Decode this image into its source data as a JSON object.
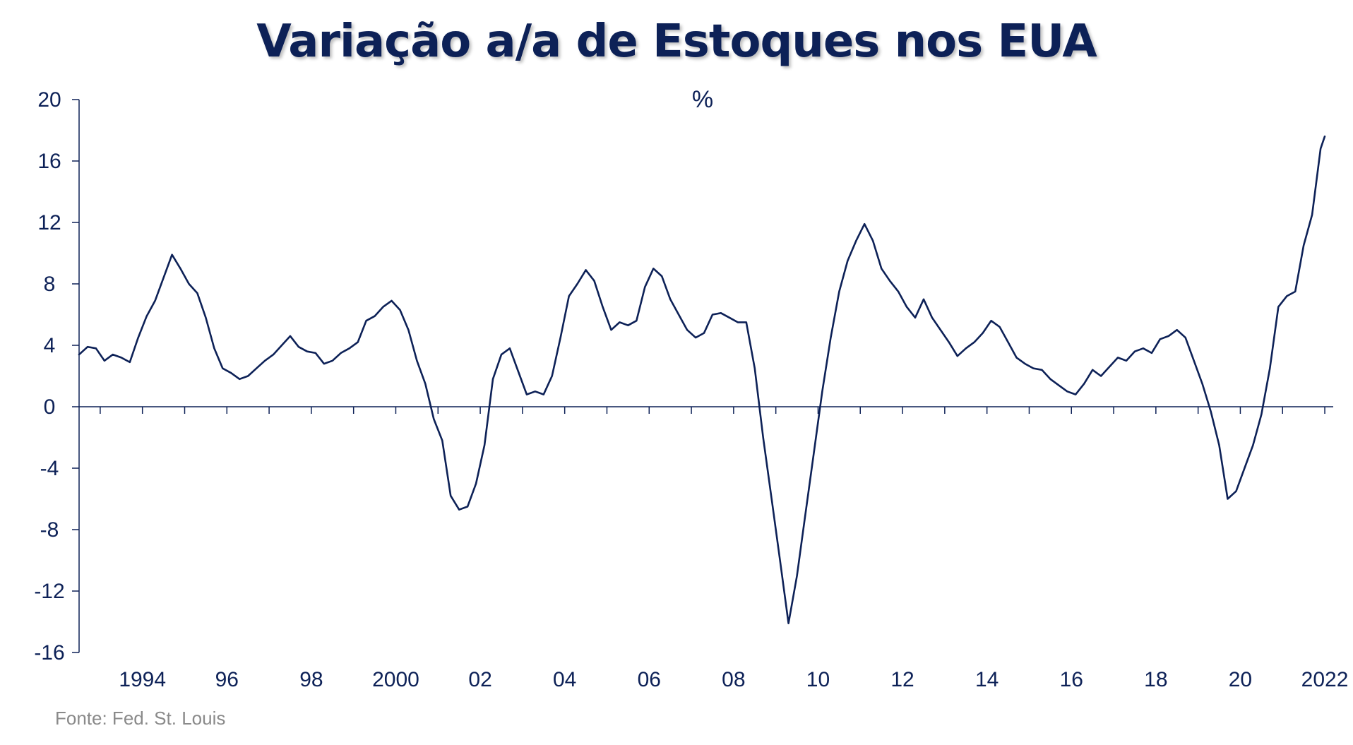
{
  "chart_data": {
    "type": "line",
    "title": "Variação a/a de Estoques nos EUA",
    "unit": "%",
    "source": "Fonte:  Fed. St. Louis",
    "xlabel": "",
    "ylabel": "",
    "ylim": [
      -16,
      20
    ],
    "yticks": [
      20,
      16,
      12,
      8,
      4,
      0,
      -4,
      -8,
      -12,
      -16
    ],
    "ytick_labels": [
      "20",
      "16",
      "12",
      "8",
      "4",
      "0",
      "-4",
      "-8",
      "-12",
      "-16"
    ],
    "xlim": [
      1993.0,
      2022.7
    ],
    "xtick_labels": [
      {
        "year": 1994,
        "label": "1994"
      },
      {
        "year": 1996,
        "label": "96"
      },
      {
        "year": 1998,
        "label": "98"
      },
      {
        "year": 2000,
        "label": "2000"
      },
      {
        "year": 2002,
        "label": "02"
      },
      {
        "year": 2004,
        "label": "04"
      },
      {
        "year": 2006,
        "label": "06"
      },
      {
        "year": 2008,
        "label": "08"
      },
      {
        "year": 2010,
        "label": "10"
      },
      {
        "year": 2012,
        "label": "12"
      },
      {
        "year": 2014,
        "label": "14"
      },
      {
        "year": 2016,
        "label": "16"
      },
      {
        "year": 2018,
        "label": "18"
      },
      {
        "year": 2020,
        "label": "20"
      },
      {
        "year": 2022,
        "label": "2022"
      }
    ],
    "grid": false,
    "line_color": "#0d2157",
    "series": [
      {
        "points": [
          [
            1993.0,
            3.4
          ],
          [
            1993.2,
            3.9
          ],
          [
            1993.4,
            3.8
          ],
          [
            1993.6,
            3.0
          ],
          [
            1993.8,
            3.4
          ],
          [
            1994.0,
            3.2
          ],
          [
            1994.2,
            2.9
          ],
          [
            1994.4,
            4.5
          ],
          [
            1994.6,
            5.9
          ],
          [
            1994.8,
            6.9
          ],
          [
            1995.0,
            8.4
          ],
          [
            1995.2,
            9.9
          ],
          [
            1995.4,
            9.0
          ],
          [
            1995.6,
            8.0
          ],
          [
            1995.8,
            7.4
          ],
          [
            1996.0,
            5.8
          ],
          [
            1996.2,
            3.8
          ],
          [
            1996.4,
            2.5
          ],
          [
            1996.6,
            2.2
          ],
          [
            1996.8,
            1.8
          ],
          [
            1997.0,
            2.0
          ],
          [
            1997.2,
            2.5
          ],
          [
            1997.4,
            3.0
          ],
          [
            1997.6,
            3.4
          ],
          [
            1997.8,
            4.0
          ],
          [
            1998.0,
            4.6
          ],
          [
            1998.2,
            3.9
          ],
          [
            1998.4,
            3.6
          ],
          [
            1998.6,
            3.5
          ],
          [
            1998.8,
            2.8
          ],
          [
            1999.0,
            3.0
          ],
          [
            1999.2,
            3.5
          ],
          [
            1999.4,
            3.8
          ],
          [
            1999.6,
            4.2
          ],
          [
            1999.8,
            5.6
          ],
          [
            2000.0,
            5.9
          ],
          [
            2000.2,
            6.5
          ],
          [
            2000.4,
            6.9
          ],
          [
            2000.6,
            6.3
          ],
          [
            2000.8,
            5.0
          ],
          [
            2001.0,
            3.0
          ],
          [
            2001.2,
            1.5
          ],
          [
            2001.4,
            -0.8
          ],
          [
            2001.6,
            -2.2
          ],
          [
            2001.8,
            -5.8
          ],
          [
            2002.0,
            -6.7
          ],
          [
            2002.2,
            -6.5
          ],
          [
            2002.4,
            -5.0
          ],
          [
            2002.6,
            -2.5
          ],
          [
            2002.8,
            1.8
          ],
          [
            2003.0,
            3.4
          ],
          [
            2003.2,
            3.8
          ],
          [
            2003.4,
            2.3
          ],
          [
            2003.6,
            0.8
          ],
          [
            2003.8,
            1.0
          ],
          [
            2004.0,
            0.8
          ],
          [
            2004.2,
            2.0
          ],
          [
            2004.4,
            4.5
          ],
          [
            2004.6,
            7.2
          ],
          [
            2004.8,
            8.0
          ],
          [
            2005.0,
            8.9
          ],
          [
            2005.2,
            8.2
          ],
          [
            2005.4,
            6.5
          ],
          [
            2005.6,
            5.0
          ],
          [
            2005.8,
            5.5
          ],
          [
            2006.0,
            5.3
          ],
          [
            2006.2,
            5.6
          ],
          [
            2006.4,
            7.8
          ],
          [
            2006.6,
            9.0
          ],
          [
            2006.8,
            8.5
          ],
          [
            2007.0,
            7.0
          ],
          [
            2007.2,
            6.0
          ],
          [
            2007.4,
            5.0
          ],
          [
            2007.6,
            4.5
          ],
          [
            2007.8,
            4.8
          ],
          [
            2008.0,
            6.0
          ],
          [
            2008.2,
            6.1
          ],
          [
            2008.4,
            5.8
          ],
          [
            2008.6,
            5.5
          ],
          [
            2008.8,
            5.5
          ],
          [
            2009.0,
            2.5
          ],
          [
            2009.2,
            -2.0
          ],
          [
            2009.4,
            -6.0
          ],
          [
            2009.6,
            -10.0
          ],
          [
            2009.8,
            -14.1
          ],
          [
            2010.0,
            -11.0
          ],
          [
            2010.2,
            -7.0
          ],
          [
            2010.4,
            -3.0
          ],
          [
            2010.6,
            1.0
          ],
          [
            2010.8,
            4.5
          ],
          [
            2011.0,
            7.5
          ],
          [
            2011.2,
            9.5
          ],
          [
            2011.4,
            10.8
          ],
          [
            2011.6,
            11.9
          ],
          [
            2011.8,
            10.8
          ],
          [
            2012.0,
            9.0
          ],
          [
            2012.2,
            8.2
          ],
          [
            2012.4,
            7.5
          ],
          [
            2012.6,
            6.5
          ],
          [
            2012.8,
            5.8
          ],
          [
            2013.0,
            7.0
          ],
          [
            2013.2,
            5.8
          ],
          [
            2013.4,
            5.0
          ],
          [
            2013.6,
            4.2
          ],
          [
            2013.8,
            3.3
          ],
          [
            2014.0,
            3.8
          ],
          [
            2014.2,
            4.2
          ],
          [
            2014.4,
            4.8
          ],
          [
            2014.6,
            5.6
          ],
          [
            2014.8,
            5.2
          ],
          [
            2015.0,
            4.2
          ],
          [
            2015.2,
            3.2
          ],
          [
            2015.4,
            2.8
          ],
          [
            2015.6,
            2.5
          ],
          [
            2015.8,
            2.4
          ],
          [
            2016.0,
            1.8
          ],
          [
            2016.2,
            1.4
          ],
          [
            2016.4,
            1.0
          ],
          [
            2016.6,
            0.8
          ],
          [
            2016.8,
            1.5
          ],
          [
            2017.0,
            2.4
          ],
          [
            2017.2,
            2.0
          ],
          [
            2017.4,
            2.6
          ],
          [
            2017.6,
            3.2
          ],
          [
            2017.8,
            3.0
          ],
          [
            2018.0,
            3.6
          ],
          [
            2018.2,
            3.8
          ],
          [
            2018.4,
            3.5
          ],
          [
            2018.6,
            4.4
          ],
          [
            2018.8,
            4.6
          ],
          [
            2019.0,
            5.0
          ],
          [
            2019.2,
            4.5
          ],
          [
            2019.4,
            3.0
          ],
          [
            2019.6,
            1.5
          ],
          [
            2019.8,
            -0.3
          ],
          [
            2020.0,
            -2.5
          ],
          [
            2020.2,
            -6.0
          ],
          [
            2020.4,
            -5.5
          ],
          [
            2020.6,
            -4.0
          ],
          [
            2020.8,
            -2.5
          ],
          [
            2021.0,
            -0.5
          ],
          [
            2021.2,
            2.5
          ],
          [
            2021.4,
            6.5
          ],
          [
            2021.6,
            7.2
          ],
          [
            2021.8,
            7.5
          ],
          [
            2022.0,
            10.5
          ],
          [
            2022.2,
            12.5
          ],
          [
            2022.4,
            16.8
          ],
          [
            2022.5,
            17.6
          ]
        ]
      }
    ]
  }
}
